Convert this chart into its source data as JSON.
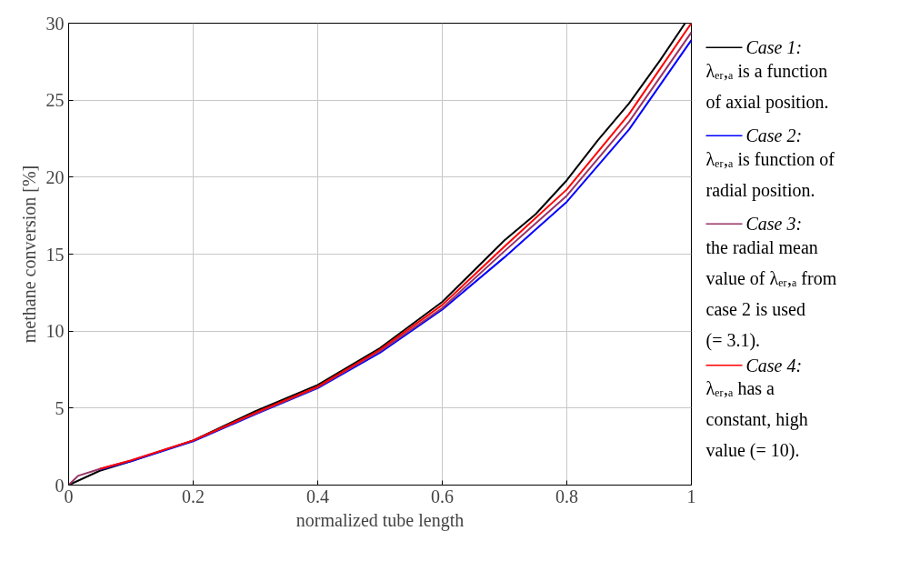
{
  "chart_data": {
    "type": "line",
    "xlabel": "normalized tube length",
    "ylabel": "methane conversion [%]",
    "xlim": [
      0,
      1
    ],
    "ylim": [
      0,
      30
    ],
    "xticks": [
      0,
      0.2,
      0.4,
      0.6,
      0.8,
      1
    ],
    "yticks": [
      0,
      5,
      10,
      15,
      20,
      25,
      30
    ],
    "grid": true,
    "legend": "right",
    "line_style": "solid",
    "marker": "none",
    "series": [
      {
        "name": "Case 1:\nλₑᵣ,ₐ is a function\nof axial position.",
        "color": "#000000",
        "x": [
          0,
          0.05,
          0.1,
          0.2,
          0.3,
          0.4,
          0.5,
          0.6,
          0.7,
          0.75,
          0.8,
          0.85,
          0.9,
          0.95,
          0.99
        ],
        "values": [
          0,
          0.93,
          1.55,
          2.9,
          4.8,
          6.5,
          8.9,
          11.9,
          15.9,
          17.6,
          19.8,
          22.4,
          24.8,
          27.6,
          30
        ]
      },
      {
        "name": "Case 2:\nλₑᵣ,ₐ is function of\nradial position.",
        "color": "#0000ff",
        "x": [
          0.05,
          0.1,
          0.2,
          0.3,
          0.4,
          0.5,
          0.6,
          0.7,
          0.8,
          0.9,
          1
        ],
        "values": [
          1.0,
          1.55,
          2.85,
          4.6,
          6.3,
          8.6,
          11.4,
          14.8,
          18.4,
          23.1,
          28.9
        ]
      },
      {
        "name": "Case 3:\nthe radial mean\nvalue of λₑᵣ,ₐ from\ncase 2 is used\n(= 3.1).",
        "color": "#993366",
        "x": [
          0,
          0.015,
          0.05,
          0.1,
          0.2,
          0.3,
          0.4,
          0.5,
          0.6,
          0.7,
          0.8,
          0.9,
          1
        ],
        "values": [
          0,
          0.6,
          1.05,
          1.6,
          2.9,
          4.65,
          6.35,
          8.7,
          11.5,
          15.2,
          18.8,
          23.6,
          29.4
        ]
      },
      {
        "name": "Case 4:\nλₑᵣ,ₐ has a\nconstant, high\nvalue (= 10).",
        "color": "#ff0000",
        "x": [
          0.05,
          0.1,
          0.2,
          0.3,
          0.4,
          0.5,
          0.6,
          0.7,
          0.8,
          0.9,
          1
        ],
        "values": [
          1.05,
          1.6,
          2.9,
          4.7,
          6.4,
          8.8,
          11.7,
          15.5,
          19.2,
          24.1,
          30.0
        ]
      }
    ]
  }
}
